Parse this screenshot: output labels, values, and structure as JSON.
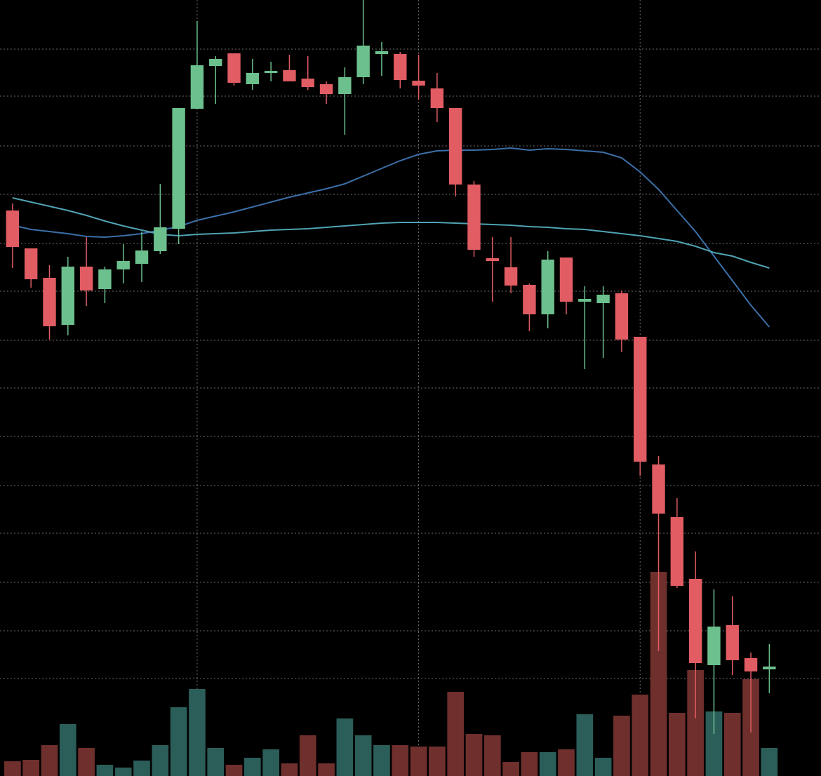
{
  "chart_data": {
    "type": "candlestick",
    "x": [
      0,
      1,
      2,
      3,
      4,
      5,
      6,
      7,
      8,
      9,
      10,
      11,
      12,
      13,
      14,
      15,
      16,
      17,
      18,
      19,
      20,
      21,
      22,
      23,
      24,
      25,
      26,
      27,
      28,
      29,
      30,
      31,
      32,
      33,
      34,
      35,
      36,
      37,
      38,
      39,
      40,
      41
    ],
    "xlim": [
      -0.68,
      43.8
    ],
    "xticks": [
      10,
      22,
      34
    ],
    "ylim": [
      0,
      1106
    ],
    "yticks": [
      139,
      207,
      276,
      346,
      414,
      484,
      553,
      621,
      691,
      759,
      829,
      898,
      969,
      1036
    ],
    "grid": true,
    "up_color": "#6cc08d",
    "down_color": "#e15c63",
    "open": [
      806,
      752,
      710,
      643,
      726,
      694,
      722,
      730,
      748,
      780,
      951,
      1012,
      1030,
      986,
      1002,
      1006,
      994,
      986,
      972,
      996,
      1029,
      1029,
      991,
      980,
      952,
      843,
      738,
      725,
      700,
      658,
      739,
      676,
      674,
      688,
      626,
      444,
      369,
      281,
      158,
      215,
      168,
      152
    ],
    "high": [
      816,
      752,
      728,
      740,
      768,
      726,
      758,
      776,
      844,
      952,
      1076,
      1026,
      1030,
      1022,
      1018,
      1028,
      1026,
      990,
      1010,
      1106,
      1046,
      1032,
      1028,
      1002,
      952,
      848,
      768,
      768,
      702,
      748,
      739,
      698,
      698,
      692,
      626,
      456,
      396,
      320,
      266,
      256,
      176,
      188
    ],
    "low": [
      724,
      696,
      622,
      628,
      670,
      674,
      702,
      704,
      744,
      758,
      951,
      958,
      984,
      978,
      990,
      990,
      978,
      958,
      914,
      986,
      998,
      980,
      964,
      932,
      826,
      740,
      676,
      688,
      634,
      638,
      658,
      580,
      596,
      604,
      428,
      178,
      268,
      82,
      60,
      144,
      62,
      118
    ],
    "close": [
      754,
      708,
      641,
      726,
      692,
      722,
      734,
      749,
      782,
      952,
      1013,
      1022,
      988,
      1002,
      1005,
      990,
      982,
      972,
      996,
      1041,
      1033,
      992,
      984,
      952,
      843,
      750,
      734,
      699,
      658,
      736,
      676,
      680,
      686,
      622,
      448,
      374,
      271,
      161,
      213,
      165,
      149,
      156
    ],
    "volume": {
      "axis": "y2",
      "up_color": "#2b5d59",
      "down_color": "#6f2f2c",
      "values": [
        21,
        23,
        44,
        74,
        40,
        16,
        12,
        22,
        44,
        98,
        124,
        40,
        16,
        26,
        38,
        18,
        58,
        18,
        82,
        58,
        44,
        44,
        42,
        42,
        120,
        60,
        58,
        20,
        34,
        34,
        38,
        88,
        26,
        86,
        116,
        291,
        90,
        151,
        92,
        90,
        138,
        40
      ]
    },
    "y2lim": [
      0,
      1106
    ],
    "moving_averages": [
      {
        "color": "#3b6fa8",
        "values": [
          785,
          779,
          776,
          773,
          769,
          768,
          770,
          773,
          778,
          783,
          792,
          798,
          804,
          811,
          818,
          825,
          831,
          837,
          844,
          855,
          866,
          877,
          886,
          891,
          892,
          892,
          893,
          895,
          892,
          894,
          893,
          891,
          889,
          881,
          861,
          836,
          806,
          776,
          741,
          706,
          671,
          640
        ]
      },
      {
        "color": "#4fa3b3",
        "values": [
          824,
          818,
          812,
          806,
          799,
          791,
          784,
          778,
          772,
          770,
          772,
          773,
          774,
          776,
          778,
          779,
          780,
          782,
          784,
          786,
          788,
          789,
          789,
          789,
          788,
          787,
          786,
          785,
          783,
          782,
          780,
          779,
          776,
          773,
          770,
          766,
          762,
          755,
          746,
          741,
          732,
          724
        ]
      }
    ]
  }
}
